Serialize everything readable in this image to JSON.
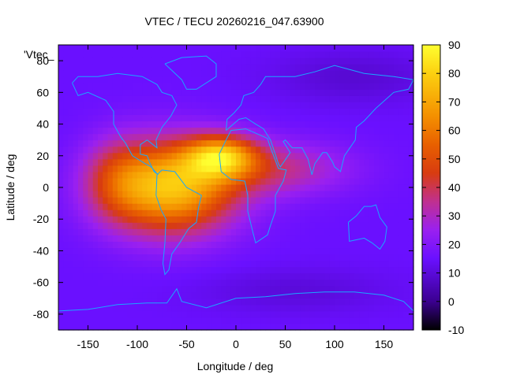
{
  "chart_data": {
    "type": "heatmap",
    "title": "VTEC / TECU 20260216_047.63900",
    "xlabel": "Longitude / deg",
    "ylabel": "Latitude / deg",
    "xlim": [
      -180,
      180
    ],
    "ylim": [
      -90,
      90
    ],
    "x_ticks": [
      -150,
      -100,
      -50,
      0,
      50,
      100,
      150
    ],
    "y_ticks": [
      -80,
      -60,
      -40,
      -20,
      0,
      20,
      40,
      60,
      80
    ],
    "x_tick_labels": [
      "-150",
      "-100",
      "-50",
      "0",
      "50",
      "100",
      "150"
    ],
    "y_tick_labels": [
      "-80",
      "-60",
      "-40",
      "-20",
      "0",
      "20",
      "40",
      "60",
      "80"
    ],
    "colorbar": {
      "min": -10,
      "max": 90,
      "ticks": [
        90,
        80,
        70,
        60,
        50,
        40,
        30,
        20,
        10,
        0,
        -10
      ],
      "tick_labels": [
        "90",
        "80",
        "70",
        "60",
        "50",
        "40",
        "30",
        "20",
        "10",
        "0",
        "-10"
      ]
    },
    "key_label": "'Vtec_",
    "background_value": 15,
    "blobs": [
      {
        "name": "main-anomaly",
        "lon": -65,
        "lat": 0,
        "sigma_lon": 45,
        "sigma_lat": 20,
        "amplitude": 60
      },
      {
        "name": "north-crest",
        "lon": -15,
        "lat": 20,
        "sigma_lon": 25,
        "sigma_lat": 9,
        "amplitude": 45
      },
      {
        "name": "africa-tail",
        "lon": 35,
        "lat": 12,
        "sigma_lon": 55,
        "sigma_lat": 12,
        "amplitude": 20
      },
      {
        "name": "west-pacific-tail",
        "lon": -120,
        "lat": 5,
        "sigma_lon": 25,
        "sigma_lat": 18,
        "amplitude": 18
      },
      {
        "name": "polar-low-north",
        "lon": 120,
        "lat": 70,
        "sigma_lon": 60,
        "sigma_lat": 12,
        "amplitude": -6
      },
      {
        "name": "polar-low-south",
        "lon": 60,
        "lat": -65,
        "sigma_lon": 70,
        "sigma_lat": 10,
        "amplitude": -5
      }
    ],
    "coastlines": [
      {
        "name": "north-america",
        "points": [
          [
            -166,
            66
          ],
          [
            -160,
            70
          ],
          [
            -140,
            70
          ],
          [
            -120,
            72
          ],
          [
            -95,
            70
          ],
          [
            -80,
            65
          ],
          [
            -75,
            60
          ],
          [
            -65,
            58
          ],
          [
            -60,
            52
          ],
          [
            -66,
            45
          ],
          [
            -75,
            38
          ],
          [
            -81,
            30
          ],
          [
            -80,
            25
          ],
          [
            -90,
            30
          ],
          [
            -97,
            27
          ],
          [
            -97,
            21
          ],
          [
            -90,
            20
          ],
          [
            -87,
            15
          ],
          [
            -83,
            10
          ],
          [
            -79,
            8
          ],
          [
            -86,
            13
          ],
          [
            -92,
            15
          ],
          [
            -105,
            20
          ],
          [
            -112,
            28
          ],
          [
            -117,
            32
          ],
          [
            -124,
            40
          ],
          [
            -124,
            48
          ],
          [
            -132,
            55
          ],
          [
            -150,
            60
          ],
          [
            -160,
            58
          ],
          [
            -166,
            66
          ]
        ]
      },
      {
        "name": "greenland",
        "points": [
          [
            -72,
            78
          ],
          [
            -55,
            82
          ],
          [
            -30,
            83
          ],
          [
            -20,
            78
          ],
          [
            -20,
            70
          ],
          [
            -40,
            62
          ],
          [
            -50,
            62
          ],
          [
            -55,
            68
          ],
          [
            -72,
            78
          ]
        ]
      },
      {
        "name": "south-america",
        "points": [
          [
            -80,
            8
          ],
          [
            -75,
            11
          ],
          [
            -62,
            10
          ],
          [
            -50,
            0
          ],
          [
            -35,
            -5
          ],
          [
            -38,
            -13
          ],
          [
            -40,
            -22
          ],
          [
            -48,
            -26
          ],
          [
            -57,
            -35
          ],
          [
            -65,
            -42
          ],
          [
            -68,
            -52
          ],
          [
            -72,
            -55
          ],
          [
            -74,
            -48
          ],
          [
            -72,
            -35
          ],
          [
            -71,
            -20
          ],
          [
            -76,
            -14
          ],
          [
            -81,
            -5
          ],
          [
            -80,
            8
          ]
        ]
      },
      {
        "name": "africa",
        "points": [
          [
            -17,
            21
          ],
          [
            -10,
            30
          ],
          [
            -5,
            36
          ],
          [
            10,
            37
          ],
          [
            32,
            31
          ],
          [
            34,
            27
          ],
          [
            43,
            12
          ],
          [
            51,
            11
          ],
          [
            48,
            4
          ],
          [
            40,
            -5
          ],
          [
            40,
            -15
          ],
          [
            35,
            -24
          ],
          [
            32,
            -30
          ],
          [
            20,
            -35
          ],
          [
            17,
            -28
          ],
          [
            12,
            -15
          ],
          [
            12,
            -5
          ],
          [
            9,
            4
          ],
          [
            -5,
            5
          ],
          [
            -15,
            10
          ],
          [
            -17,
            21
          ]
        ]
      },
      {
        "name": "eurasia",
        "points": [
          [
            -10,
            36
          ],
          [
            -9,
            43
          ],
          [
            -2,
            47
          ],
          [
            5,
            52
          ],
          [
            8,
            58
          ],
          [
            18,
            60
          ],
          [
            25,
            65
          ],
          [
            30,
            70
          ],
          [
            60,
            70
          ],
          [
            80,
            73
          ],
          [
            100,
            77
          ],
          [
            130,
            72
          ],
          [
            160,
            70
          ],
          [
            180,
            68
          ],
          [
            175,
            62
          ],
          [
            160,
            60
          ],
          [
            142,
            50
          ],
          [
            130,
            42
          ],
          [
            122,
            38
          ],
          [
            121,
            30
          ],
          [
            110,
            20
          ],
          [
            106,
            10
          ],
          [
            100,
            13
          ],
          [
            98,
            16
          ],
          [
            92,
            22
          ],
          [
            88,
            22
          ],
          [
            80,
            15
          ],
          [
            77,
            8
          ],
          [
            73,
            18
          ],
          [
            67,
            25
          ],
          [
            57,
            25
          ],
          [
            50,
            30
          ],
          [
            48,
            29
          ],
          [
            55,
            22
          ],
          [
            45,
            13
          ],
          [
            43,
            15
          ],
          [
            35,
            30
          ],
          [
            28,
            37
          ],
          [
            20,
            40
          ],
          [
            10,
            44
          ],
          [
            3,
            43
          ],
          [
            -10,
            36
          ]
        ]
      },
      {
        "name": "australia",
        "points": [
          [
            114,
            -22
          ],
          [
            122,
            -18
          ],
          [
            130,
            -12
          ],
          [
            137,
            -12
          ],
          [
            142,
            -11
          ],
          [
            146,
            -19
          ],
          [
            153,
            -25
          ],
          [
            151,
            -34
          ],
          [
            146,
            -39
          ],
          [
            138,
            -35
          ],
          [
            130,
            -32
          ],
          [
            115,
            -34
          ],
          [
            114,
            -22
          ]
        ]
      },
      {
        "name": "antarctica",
        "points": [
          [
            -180,
            -78
          ],
          [
            -150,
            -77
          ],
          [
            -120,
            -74
          ],
          [
            -90,
            -73
          ],
          [
            -70,
            -73
          ],
          [
            -60,
            -64
          ],
          [
            -55,
            -72
          ],
          [
            -30,
            -76
          ],
          [
            0,
            -70
          ],
          [
            30,
            -69
          ],
          [
            60,
            -67
          ],
          [
            90,
            -66
          ],
          [
            120,
            -66
          ],
          [
            150,
            -68
          ],
          [
            170,
            -72
          ],
          [
            180,
            -78
          ]
        ]
      }
    ]
  }
}
